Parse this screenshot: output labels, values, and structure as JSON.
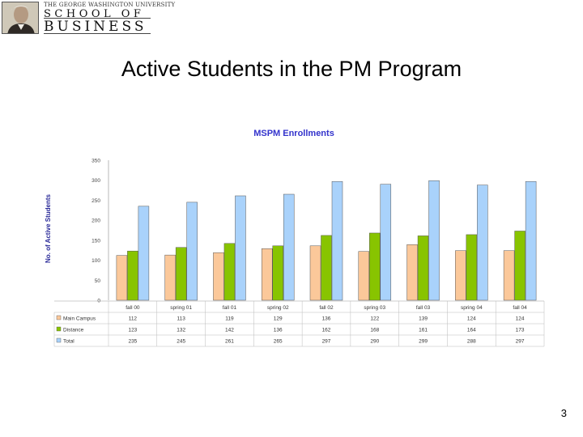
{
  "logo": {
    "university": "THE GEORGE WASHINGTON UNIVERSITY",
    "line1": "SCHOOL OF",
    "line2": "BUSINESS"
  },
  "slide": {
    "title": "Active Students in the PM Program",
    "page_number": "3"
  },
  "colors": {
    "main_campus": "#fbc89a",
    "distance": "#88c400",
    "total": "#a9d2fb",
    "chart_title": "#3333cc",
    "axis_label": "#2b2b99"
  },
  "chart_data": {
    "type": "bar",
    "title": "MSPM Enrollments",
    "ylabel": "No. of Active Students",
    "xlabel": "",
    "ylim": [
      0,
      350
    ],
    "yticks": [
      0,
      50,
      100,
      150,
      200,
      250,
      300,
      350
    ],
    "grid": false,
    "legend": "table-below",
    "categories": [
      "fall 00",
      "spring 01",
      "fall 01",
      "spring 02",
      "fall 02",
      "spring 03",
      "fall 03",
      "spring 04",
      "fall 04"
    ],
    "series": [
      {
        "name": "Main Campus",
        "values": [
          112,
          113,
          119,
          129,
          136,
          122,
          139,
          124,
          124
        ]
      },
      {
        "name": "Distance",
        "values": [
          123,
          132,
          142,
          136,
          162,
          168,
          161,
          164,
          173
        ]
      },
      {
        "name": "Total",
        "values": [
          235,
          245,
          261,
          265,
          297,
          290,
          299,
          288,
          297
        ]
      }
    ]
  }
}
